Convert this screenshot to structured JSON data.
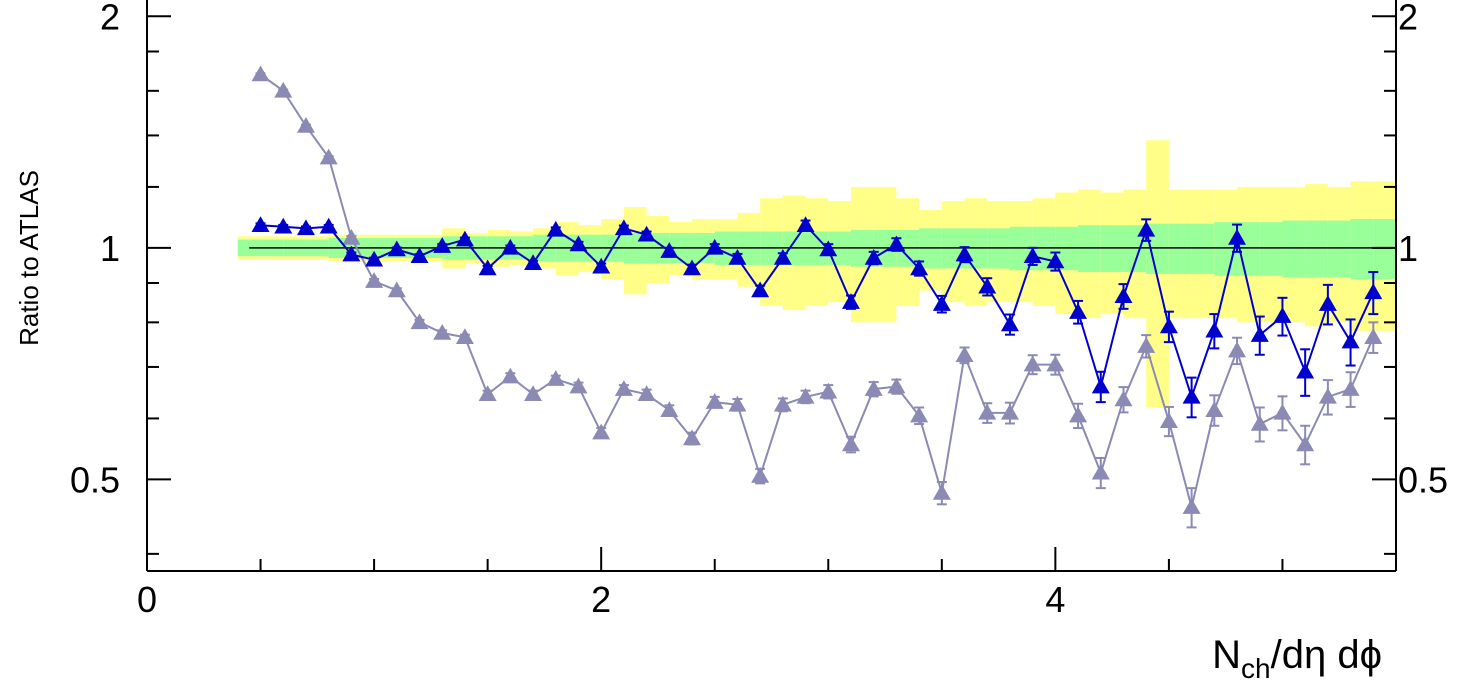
{
  "chart_data": {
    "type": "scatter",
    "xlabel": {
      "base": "N",
      "sub": "ch",
      "rest": "/dη dϕ"
    },
    "ylabel": "Ratio to ATLAS",
    "xlim": [
      0,
      5.5
    ],
    "ylim": [
      0.38,
      2.1
    ],
    "yscale": "log",
    "x_ticks": [
      "0",
      "2",
      "4"
    ],
    "y_ticks": [
      "0.5",
      "1",
      "2"
    ],
    "y_ticks_right": [
      "0.5",
      "1",
      "2"
    ],
    "reference_line": 1,
    "grid": false,
    "legend": "none",
    "colors": {
      "series_a": "#0000cc",
      "series_b": "#8a8ab5",
      "band_inner": "#99ff99",
      "band_outer": "#ffff88",
      "axis": "#000000"
    },
    "bands": {
      "x": [
        0.45,
        0.55,
        0.65,
        0.75,
        0.85,
        0.95,
        1.05,
        1.15,
        1.25,
        1.35,
        1.45,
        1.55,
        1.65,
        1.75,
        1.85,
        1.95,
        2.05,
        2.15,
        2.25,
        2.35,
        2.45,
        2.55,
        2.65,
        2.75,
        2.85,
        2.95,
        3.05,
        3.15,
        3.25,
        3.35,
        3.45,
        3.55,
        3.65,
        3.75,
        3.85,
        3.95,
        4.05,
        4.15,
        4.25,
        4.35,
        4.45,
        4.55,
        4.65,
        4.75,
        4.85,
        4.95,
        5.05,
        5.15,
        5.25,
        5.35,
        5.45
      ],
      "inner": [
        0.025,
        0.025,
        0.025,
        0.025,
        0.03,
        0.03,
        0.03,
        0.03,
        0.03,
        0.035,
        0.035,
        0.035,
        0.035,
        0.04,
        0.04,
        0.04,
        0.04,
        0.045,
        0.045,
        0.045,
        0.045,
        0.05,
        0.05,
        0.05,
        0.05,
        0.05,
        0.05,
        0.055,
        0.055,
        0.055,
        0.06,
        0.06,
        0.06,
        0.06,
        0.065,
        0.065,
        0.065,
        0.07,
        0.07,
        0.07,
        0.075,
        0.075,
        0.075,
        0.08,
        0.08,
        0.08,
        0.085,
        0.085,
        0.085,
        0.09,
        0.09
      ],
      "outer": [
        0.035,
        0.035,
        0.035,
        0.035,
        0.04,
        0.04,
        0.04,
        0.04,
        0.04,
        0.06,
        0.045,
        0.055,
        0.05,
        0.06,
        0.08,
        0.07,
        0.09,
        0.13,
        0.1,
        0.08,
        0.09,
        0.09,
        0.11,
        0.16,
        0.17,
        0.16,
        0.15,
        0.2,
        0.2,
        0.16,
        0.12,
        0.15,
        0.16,
        0.15,
        0.15,
        0.16,
        0.18,
        0.19,
        0.18,
        0.19,
        0.38,
        0.19,
        0.19,
        0.19,
        0.2,
        0.2,
        0.2,
        0.21,
        0.2,
        0.22,
        0.22
      ]
    },
    "series": [
      {
        "color": "#0000cc",
        "x": [
          0.5,
          0.6,
          0.7,
          0.8,
          0.9,
          1.0,
          1.1,
          1.2,
          1.3,
          1.4,
          1.5,
          1.6,
          1.7,
          1.8,
          1.9,
          2.0,
          2.1,
          2.2,
          2.3,
          2.4,
          2.5,
          2.6,
          2.7,
          2.8,
          2.9,
          3.0,
          3.1,
          3.2,
          3.3,
          3.4,
          3.5,
          3.6,
          3.7,
          3.8,
          3.9,
          4.0,
          4.1,
          4.2,
          4.3,
          4.4,
          4.5,
          4.6,
          4.7,
          4.8,
          4.9,
          5.0,
          5.1,
          5.2,
          5.3,
          5.4
        ],
        "y": [
          1.07,
          1.065,
          1.06,
          1.065,
          0.98,
          0.965,
          0.995,
          0.975,
          1.005,
          1.025,
          0.94,
          1.0,
          0.955,
          1.055,
          1.01,
          0.945,
          1.06,
          1.04,
          0.99,
          0.94,
          1.0,
          0.97,
          0.88,
          0.97,
          1.07,
          0.995,
          0.85,
          0.97,
          1.01,
          0.94,
          0.845,
          0.98,
          0.89,
          0.795,
          0.975,
          0.96,
          0.825,
          0.66,
          0.865,
          1.055,
          0.79,
          0.64,
          0.78,
          1.03,
          0.77,
          0.815,
          0.69,
          0.845,
          0.755,
          0.875
        ],
        "err": [
          0.006,
          0.006,
          0.006,
          0.006,
          0.006,
          0.006,
          0.006,
          0.006,
          0.006,
          0.006,
          0.007,
          0.007,
          0.007,
          0.008,
          0.008,
          0.009,
          0.009,
          0.01,
          0.01,
          0.011,
          0.011,
          0.012,
          0.013,
          0.014,
          0.015,
          0.016,
          0.017,
          0.018,
          0.019,
          0.02,
          0.021,
          0.022,
          0.023,
          0.024,
          0.025,
          0.026,
          0.028,
          0.03,
          0.032,
          0.034,
          0.036,
          0.038,
          0.04,
          0.042,
          0.044,
          0.046,
          0.048,
          0.05,
          0.052,
          0.055
        ]
      },
      {
        "color": "#8a8ab5",
        "x": [
          0.5,
          0.6,
          0.7,
          0.8,
          0.9,
          1.0,
          1.1,
          1.2,
          1.3,
          1.4,
          1.5,
          1.6,
          1.7,
          1.8,
          1.9,
          2.0,
          2.1,
          2.2,
          2.3,
          2.4,
          2.5,
          2.6,
          2.7,
          2.8,
          2.9,
          3.0,
          3.1,
          3.2,
          3.3,
          3.4,
          3.5,
          3.6,
          3.7,
          3.8,
          3.9,
          4.0,
          4.1,
          4.2,
          4.3,
          4.4,
          4.5,
          4.6,
          4.7,
          4.8,
          4.9,
          5.0,
          5.1,
          5.2,
          5.3,
          5.4
        ],
        "y": [
          1.68,
          1.6,
          1.44,
          1.31,
          1.03,
          0.905,
          0.88,
          0.8,
          0.775,
          0.765,
          0.645,
          0.68,
          0.645,
          0.675,
          0.66,
          0.575,
          0.655,
          0.645,
          0.615,
          0.565,
          0.63,
          0.625,
          0.505,
          0.625,
          0.64,
          0.65,
          0.555,
          0.655,
          0.66,
          0.605,
          0.48,
          0.725,
          0.61,
          0.61,
          0.705,
          0.705,
          0.605,
          0.51,
          0.635,
          0.745,
          0.595,
          0.46,
          0.615,
          0.735,
          0.59,
          0.61,
          0.555,
          0.64,
          0.655,
          0.765
        ],
        "err": [
          0.006,
          0.006,
          0.006,
          0.006,
          0.006,
          0.006,
          0.006,
          0.006,
          0.006,
          0.006,
          0.007,
          0.007,
          0.007,
          0.007,
          0.008,
          0.008,
          0.008,
          0.009,
          0.009,
          0.01,
          0.01,
          0.011,
          0.011,
          0.012,
          0.012,
          0.013,
          0.013,
          0.014,
          0.014,
          0.015,
          0.016,
          0.017,
          0.018,
          0.019,
          0.02,
          0.021,
          0.022,
          0.023,
          0.024,
          0.025,
          0.026,
          0.027,
          0.028,
          0.029,
          0.03,
          0.031,
          0.032,
          0.033,
          0.034,
          0.035
        ]
      }
    ]
  }
}
